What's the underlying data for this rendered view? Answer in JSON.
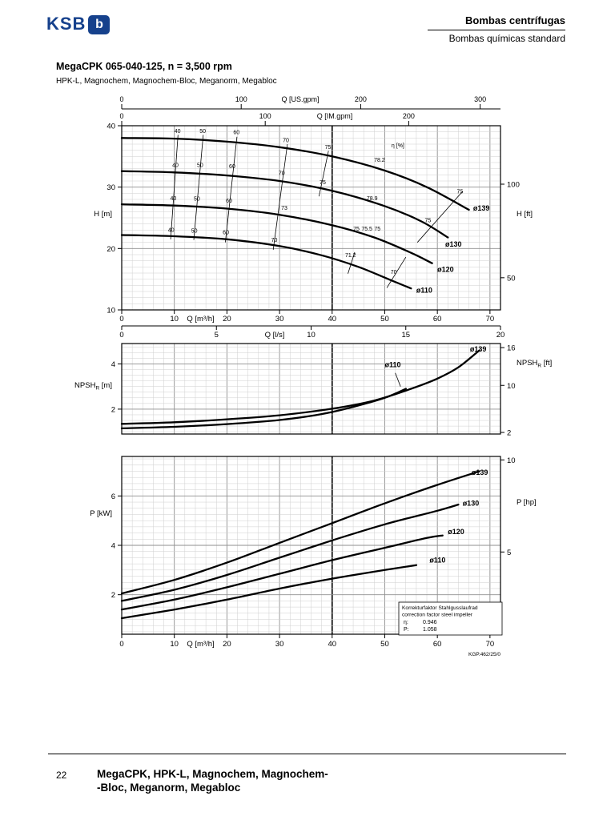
{
  "header": {
    "logo_text": "KSB",
    "logo_mark": "b",
    "category": "Bombas centrífugas",
    "subcategory": "Bombas químicas standard"
  },
  "title": "MegaCPK 065-040-125, n = 3,500 rpm",
  "subtitle": "HPK-L, Magnochem, Magnochem-Bloc, Meganorm, Megabloc",
  "doc_code": "KGP.462/25/0",
  "correction_box": {
    "line1": "Korrekturfaktor Stahlgusslaufrad",
    "line2": "correction factor steel impeller",
    "eta_label": "η:",
    "eta_value": "0.946",
    "p_label": "P:",
    "p_value": "1.058"
  },
  "footer": {
    "page_number": "22",
    "line1": "MegaCPK, HPK-L, Magnochem, Magnochem-",
    "line2": "-Bloc, Meganorm, Megabloc"
  },
  "chart_data": [
    {
      "type": "line",
      "name": "head-capacity",
      "xlabel": "Q [m³/h]",
      "ylabel": "H [m]",
      "ylabel_right": "H [ft]",
      "xlim": [
        0,
        72
      ],
      "ylim": [
        10,
        40
      ],
      "x_ticks": [
        0,
        10,
        20,
        30,
        40,
        50,
        60,
        70
      ],
      "y_ticks": [
        10,
        20,
        30,
        40
      ],
      "right_ticks": [
        {
          "label": "100",
          "v": 30.48
        },
        {
          "label": "50",
          "v": 15.24
        }
      ],
      "top_axes": [
        {
          "label": "Q [US.gpm]",
          "unit_to_m3h": 0.22712,
          "ticks": [
            0,
            100,
            200,
            300
          ]
        },
        {
          "label": "Q [IM.gpm]",
          "unit_to_m3h": 0.27277,
          "ticks": [
            0,
            100,
            200
          ]
        }
      ],
      "ls_axis": {
        "label": "Q [l/s]",
        "unit_to_m3h": 3.6,
        "ticks": [
          0,
          5,
          10,
          15,
          20
        ]
      },
      "series": [
        {
          "name": "ø139",
          "points": [
            [
              0,
              38
            ],
            [
              10,
              37.9
            ],
            [
              20,
              37.4
            ],
            [
              30,
              36.5
            ],
            [
              40,
              35
            ],
            [
              50,
              32.7
            ],
            [
              58,
              30
            ],
            [
              66,
              26.3
            ]
          ]
        },
        {
          "name": "ø130",
          "points": [
            [
              0,
              32.6
            ],
            [
              10,
              32.4
            ],
            [
              20,
              31.9
            ],
            [
              30,
              31
            ],
            [
              40,
              29.4
            ],
            [
              50,
              26.9
            ],
            [
              57,
              24.4
            ],
            [
              62,
              21.8
            ]
          ]
        },
        {
          "name": "ø120",
          "points": [
            [
              0,
              27.2
            ],
            [
              10,
              27
            ],
            [
              20,
              26.5
            ],
            [
              30,
              25.5
            ],
            [
              40,
              23.8
            ],
            [
              48,
              21.8
            ],
            [
              55,
              19.3
            ],
            [
              59,
              17.6
            ]
          ]
        },
        {
          "name": "ø110",
          "points": [
            [
              0,
              22.2
            ],
            [
              10,
              22
            ],
            [
              20,
              21.5
            ],
            [
              30,
              20.4
            ],
            [
              38,
              18.9
            ],
            [
              45,
              17
            ],
            [
              51,
              14.9
            ],
            [
              55,
              13.5
            ]
          ]
        }
      ],
      "series_labels": [
        {
          "t": "ø139",
          "q": 66.8,
          "h": 26.2
        },
        {
          "t": "ø130",
          "q": 61.5,
          "h": 20.3
        },
        {
          "t": "ø120",
          "q": 60,
          "h": 16.2
        },
        {
          "t": "ø110",
          "q": 56,
          "h": 12.8
        }
      ],
      "eff_contours": [
        {
          "points": [
            [
              10.7,
              38.5
            ],
            [
              9.3,
              21.5
            ]
          ]
        },
        {
          "points": [
            [
              15.5,
              38.5
            ],
            [
              13.7,
              21.4
            ]
          ]
        },
        {
          "points": [
            [
              21.9,
              38.2
            ],
            [
              19.7,
              21.0
            ]
          ]
        },
        {
          "points": [
            [
              31.5,
              37.0
            ],
            [
              28.8,
              19.8
            ]
          ]
        },
        {
          "points": [
            [
              39.3,
              35.9
            ],
            [
              37.5,
              28.5
            ]
          ]
        },
        {
          "points": [
            [
              64.8,
              29.3
            ],
            [
              56.2,
              21.0
            ]
          ]
        },
        {
          "points": [
            [
              54.0,
              18.6
            ],
            [
              50.4,
              13.6
            ]
          ]
        },
        {
          "points": [
            [
              44.3,
              19.4
            ],
            [
              43.0,
              15.9
            ]
          ]
        }
      ],
      "eff_labels": [
        {
          "t": "40",
          "q": 10.6,
          "h": 38.8
        },
        {
          "t": "50",
          "q": 15.4,
          "h": 38.8
        },
        {
          "t": "60",
          "q": 21.8,
          "h": 38.6
        },
        {
          "t": "70",
          "q": 31.2,
          "h": 37.3
        },
        {
          "t": "75",
          "q": 39.2,
          "h": 36.2
        },
        {
          "t": "η [%]",
          "q": 52.5,
          "h": 36.5
        },
        {
          "t": "78.2",
          "q": 49,
          "h": 34.1
        },
        {
          "t": "75",
          "q": 64.3,
          "h": 29
        },
        {
          "t": "40",
          "q": 10.2,
          "h": 33.3
        },
        {
          "t": "50",
          "q": 14.9,
          "h": 33.3
        },
        {
          "t": "60",
          "q": 21,
          "h": 33.1
        },
        {
          "t": "70",
          "q": 30.4,
          "h": 32
        },
        {
          "t": "75",
          "q": 38.2,
          "h": 30.5
        },
        {
          "t": "78.9",
          "q": 47.6,
          "h": 27.9
        },
        {
          "t": "75",
          "q": 58.2,
          "h": 24.3
        },
        {
          "t": "40",
          "q": 9.8,
          "h": 27.9
        },
        {
          "t": "50",
          "q": 14.3,
          "h": 27.8
        },
        {
          "t": "60",
          "q": 20.4,
          "h": 27.5
        },
        {
          "t": "73",
          "q": 30.9,
          "h": 26.3
        },
        {
          "t": "75",
          "q": 44.6,
          "h": 22.9
        },
        {
          "t": "75.5",
          "q": 46.6,
          "h": 22.9
        },
        {
          "t": "75",
          "q": 48.6,
          "h": 22.9
        },
        {
          "t": "71.2",
          "q": 43.5,
          "h": 18.6
        },
        {
          "t": "40",
          "q": 9.4,
          "h": 22.7
        },
        {
          "t": "50",
          "q": 13.8,
          "h": 22.6
        },
        {
          "t": "60",
          "q": 19.8,
          "h": 22.3
        },
        {
          "t": "70",
          "q": 29,
          "h": 21.1
        },
        {
          "t": "70",
          "q": 51.7,
          "h": 15.9
        }
      ]
    },
    {
      "type": "line",
      "name": "npshr",
      "ylabel": "NPSH",
      "ylabel_sub": "R",
      "ylabel_unit": "[m]",
      "ylabel_unit_right": "[ft]",
      "xlim": [
        0,
        72
      ],
      "ylim": [
        0.9,
        4.9
      ],
      "y_ticks": [
        2,
        4
      ],
      "right_ticks": [
        {
          "label": "16",
          "v": 4.72
        },
        {
          "label": "10",
          "v": 3.05
        },
        {
          "label": "2",
          "v": 0.97
        }
      ],
      "series": [
        {
          "name": "ø139",
          "points": [
            [
              0,
              1.35
            ],
            [
              10,
              1.42
            ],
            [
              20,
              1.55
            ],
            [
              30,
              1.73
            ],
            [
              40,
              2.02
            ],
            [
              48,
              2.38
            ],
            [
              55,
              2.9
            ],
            [
              60,
              3.35
            ],
            [
              64,
              3.85
            ],
            [
              68,
              4.6
            ]
          ]
        },
        {
          "name": "ø110",
          "points": [
            [
              0,
              1.15
            ],
            [
              10,
              1.22
            ],
            [
              20,
              1.34
            ],
            [
              30,
              1.52
            ],
            [
              38,
              1.78
            ],
            [
              44,
              2.1
            ],
            [
              50,
              2.5
            ],
            [
              54,
              2.9
            ]
          ]
        }
      ],
      "series_labels": [
        {
          "t": "ø139",
          "q": 66.2,
          "h": 4.55
        },
        {
          "t": "ø110",
          "q": 50,
          "h": 3.85
        }
      ],
      "leader": {
        "from": [
          52,
          3.6
        ],
        "to": [
          53,
          3.0
        ]
      }
    },
    {
      "type": "line",
      "name": "power",
      "xlabel": "Q [m³/h]",
      "ylabel": "P [kW]",
      "ylabel_right": "P [hp]",
      "xlim": [
        0,
        72
      ],
      "ylim": [
        0.4,
        7.6
      ],
      "x_ticks": [
        0,
        10,
        20,
        30,
        40,
        50,
        60,
        70
      ],
      "y_ticks": [
        2,
        4,
        6
      ],
      "right_ticks": [
        {
          "label": "10",
          "v": 7.46
        },
        {
          "label": "5",
          "v": 3.73
        }
      ],
      "series": [
        {
          "name": "ø139",
          "points": [
            [
              0,
              2.05
            ],
            [
              10,
              2.6
            ],
            [
              20,
              3.3
            ],
            [
              30,
              4.1
            ],
            [
              40,
              4.9
            ],
            [
              50,
              5.7
            ],
            [
              60,
              6.45
            ],
            [
              68,
              7.0
            ]
          ]
        },
        {
          "name": "ø130",
          "points": [
            [
              0,
              1.75
            ],
            [
              10,
              2.2
            ],
            [
              20,
              2.8
            ],
            [
              30,
              3.5
            ],
            [
              40,
              4.2
            ],
            [
              50,
              4.85
            ],
            [
              60,
              5.4
            ],
            [
              64,
              5.65
            ]
          ]
        },
        {
          "name": "ø120",
          "points": [
            [
              0,
              1.4
            ],
            [
              10,
              1.8
            ],
            [
              20,
              2.3
            ],
            [
              30,
              2.85
            ],
            [
              40,
              3.4
            ],
            [
              50,
              3.9
            ],
            [
              58,
              4.3
            ],
            [
              61,
              4.4
            ]
          ]
        },
        {
          "name": "ø110",
          "points": [
            [
              0,
              1.05
            ],
            [
              10,
              1.4
            ],
            [
              20,
              1.8
            ],
            [
              30,
              2.25
            ],
            [
              40,
              2.65
            ],
            [
              50,
              3.0
            ],
            [
              56,
              3.2
            ]
          ]
        }
      ],
      "series_labels": [
        {
          "t": "ø139",
          "q": 66.5,
          "h": 6.85
        },
        {
          "t": "ø130",
          "q": 64.8,
          "h": 5.6
        },
        {
          "t": "ø120",
          "q": 62,
          "h": 4.45
        },
        {
          "t": "ø110",
          "q": 58.5,
          "h": 3.3
        }
      ]
    }
  ]
}
